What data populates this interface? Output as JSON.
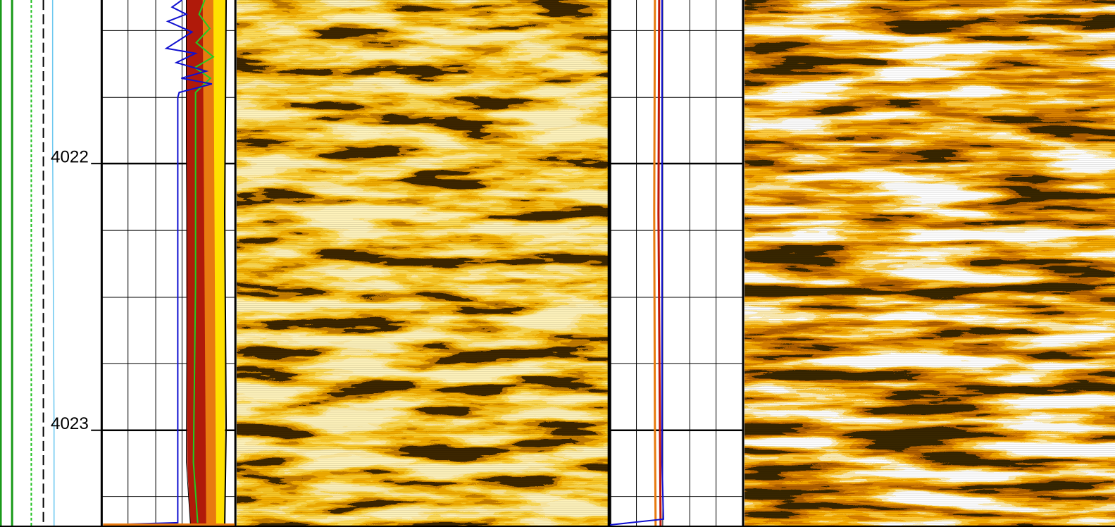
{
  "depth_track": {
    "labels": [
      "4022",
      "4023"
    ]
  }
}
